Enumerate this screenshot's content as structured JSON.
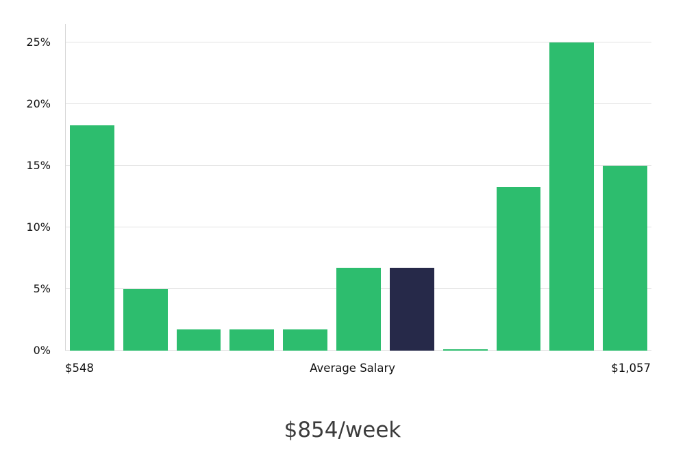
{
  "chart_data": {
    "type": "bar",
    "title": "$854/week",
    "values": [
      18.3,
      5.0,
      1.7,
      1.7,
      1.7,
      6.7,
      6.7,
      0.1,
      13.3,
      25.0,
      15.0
    ],
    "highlight_index": 6,
    "bar_color": "#2dbd6e",
    "highlight_color": "#262949",
    "ylim": [
      0,
      26.5
    ],
    "yticks": [
      0,
      5,
      10,
      15,
      20,
      25
    ],
    "ytick_labels": [
      "0%",
      "5%",
      "10%",
      "15%",
      "20%",
      "25%"
    ],
    "x_axis_labels": {
      "left": "$548",
      "center": "Average Salary",
      "right": "$1,057"
    },
    "grid": true,
    "legend_position": "none"
  }
}
